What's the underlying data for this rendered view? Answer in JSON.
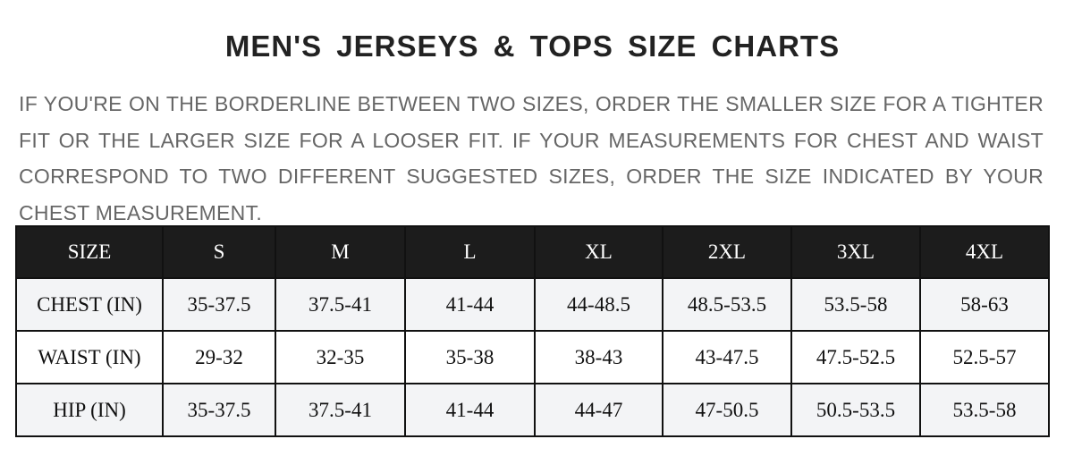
{
  "title": "MEN'S JERSEYS & TOPS SIZE CHARTS",
  "note": "IF YOU'RE ON THE BORDERLINE BETWEEN TWO SIZES, ORDER THE SMALLER SIZE FOR A TIGHTER FIT OR THE LARGER SIZE FOR A LOOSER FIT. IF YOUR MEASUREMENTS FOR CHEST AND WAIST CORRESPOND TO TWO DIFFERENT SUGGESTED SIZES, ORDER THE SIZE INDICATED BY YOUR CHEST MEASUREMENT.",
  "table": {
    "headers": [
      "SIZE",
      "S",
      "M",
      "L",
      "XL",
      "2XL",
      "3XL",
      "4XL"
    ],
    "rows": [
      [
        "CHEST (IN)",
        "35-37.5",
        "37.5-41",
        "41-44",
        "44-48.5",
        "48.5-53.5",
        "53.5-58",
        "58-63"
      ],
      [
        "WAIST (IN)",
        "29-32",
        "32-35",
        "35-38",
        "38-43",
        "43-47.5",
        "47.5-52.5",
        "52.5-57"
      ],
      [
        "HIP (IN)",
        "35-37.5",
        "37.5-41",
        "41-44",
        "44-47",
        "47-50.5",
        "50.5-53.5",
        "53.5-58"
      ]
    ]
  },
  "colors": {
    "header_bg": "#1c1c1c",
    "stripe_bg": "#f3f4f6",
    "note_text": "#666666"
  }
}
